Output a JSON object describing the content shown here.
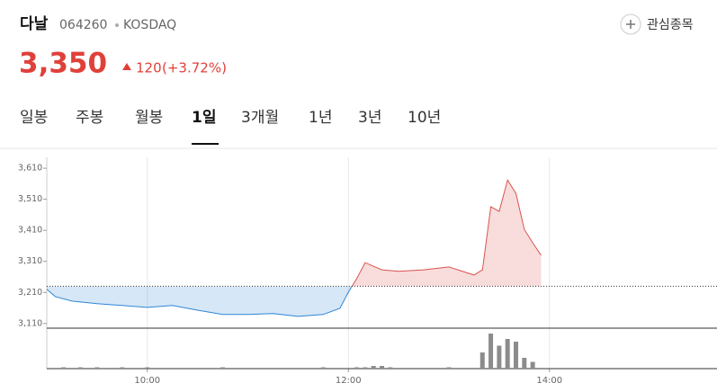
{
  "header": {
    "name": "다날",
    "code": "064260",
    "market": "KOSDAQ",
    "watch_button": "관심종목",
    "price": "3,350",
    "change": "120",
    "change_pct": "(+3.72%)"
  },
  "tabs": {
    "items": [
      "일봉",
      "주봉",
      "월봉",
      "1일",
      "3개월",
      "1년",
      "3년",
      "10년"
    ],
    "active": 3
  },
  "chart_data": {
    "type": "line",
    "x": [
      "09:00",
      "09:05",
      "09:15",
      "09:30",
      "09:45",
      "10:00",
      "10:15",
      "10:30",
      "10:45",
      "11:00",
      "11:15",
      "11:30",
      "11:45",
      "11:55",
      "12:00",
      "12:05",
      "12:10",
      "12:20",
      "12:30",
      "12:45",
      "13:00",
      "13:15",
      "13:20",
      "13:25",
      "13:30",
      "13:35",
      "13:40",
      "13:45",
      "13:50",
      "13:55"
    ],
    "values": [
      3220,
      3197,
      3182,
      3174,
      3168,
      3162,
      3168,
      3153,
      3139,
      3139,
      3142,
      3133,
      3139,
      3159,
      3211,
      3255,
      3306,
      3283,
      3278,
      3283,
      3292,
      3266,
      3283,
      3486,
      3471,
      3572,
      3529,
      3413,
      3370,
      3330
    ],
    "base": 3230,
    "colors": {
      "up": "#d9534f",
      "down": "#2f86d6"
    },
    "xlim": [
      "09:00",
      "15:40"
    ],
    "xticks": [
      "10:00",
      "12:00",
      "14:00"
    ],
    "ylim": [
      3095,
      3645
    ],
    "yticks": [
      {
        "value": 3110,
        "label": "3,110"
      },
      {
        "value": 3210,
        "label": "3,210"
      },
      {
        "value": 3310,
        "label": "3,310"
      },
      {
        "value": 3410,
        "label": "3,410"
      },
      {
        "value": 3510,
        "label": "3,510"
      },
      {
        "value": 3610,
        "label": "3,610"
      }
    ],
    "volume": {
      "x": [
        "09:10",
        "09:20",
        "09:30",
        "09:45",
        "10:00",
        "10:45",
        "11:45",
        "12:05",
        "12:10",
        "12:15",
        "12:20",
        "12:25",
        "13:00",
        "13:20",
        "13:25",
        "13:30",
        "13:35",
        "13:40",
        "13:45",
        "13:50"
      ],
      "values": [
        1,
        1,
        1,
        1,
        1,
        1,
        1,
        1,
        1,
        2,
        2,
        1,
        1,
        12,
        26,
        17,
        22,
        20,
        8,
        5
      ],
      "ylim": [
        0,
        28
      ],
      "color": "#8c8c8c"
    }
  }
}
